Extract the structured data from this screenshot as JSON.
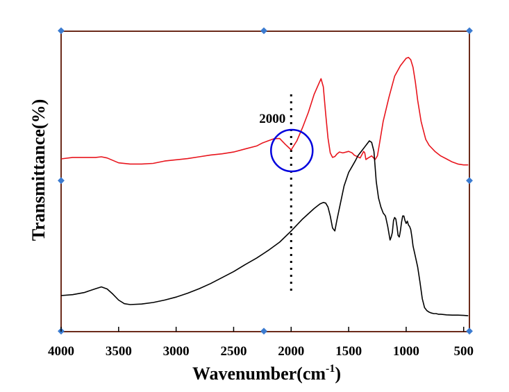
{
  "chart_data": {
    "type": "line",
    "title": "",
    "xlabel": "Wavenumber(cm",
    "xlabel_sup": "-1",
    "xlabel_close": ")",
    "ylabel": "Transmittance(%)",
    "xlim": [
      4000,
      450
    ],
    "ylim": [
      0,
      100
    ],
    "x_reversed": true,
    "xticks": [
      4000,
      3500,
      3000,
      2500,
      2000,
      1500,
      1000,
      500
    ],
    "xtick_labels": [
      "4000",
      "3500",
      "3000",
      "2500",
      "2000",
      "1500",
      "1000",
      "500"
    ],
    "grid": false,
    "colors": {
      "frame": "#6b2a1a",
      "handle": "#3b7bd0",
      "marker": "#0000dd"
    },
    "series": [
      {
        "name": "red",
        "color": "#e8141c",
        "x": [
          4000,
          3900,
          3800,
          3700,
          3650,
          3600,
          3500,
          3400,
          3300,
          3200,
          3100,
          3000,
          2900,
          2800,
          2700,
          2600,
          2500,
          2400,
          2300,
          2250,
          2200,
          2150,
          2100,
          2050,
          2000,
          1950,
          1900,
          1850,
          1800,
          1760,
          1740,
          1720,
          1700,
          1680,
          1660,
          1640,
          1620,
          1600,
          1580,
          1550,
          1500,
          1470,
          1450,
          1420,
          1400,
          1370,
          1360,
          1350,
          1330,
          1300,
          1270,
          1250,
          1230,
          1200,
          1150,
          1100,
          1050,
          1020,
          1000,
          980,
          960,
          940,
          920,
          900,
          870,
          850,
          830,
          800,
          750,
          700,
          650,
          600,
          550,
          500,
          460
        ],
        "y": [
          57.5,
          58.0,
          58.0,
          58.0,
          58.2,
          57.8,
          56.2,
          55.8,
          55.8,
          56.0,
          56.8,
          57.2,
          57.6,
          58.2,
          58.8,
          59.2,
          59.8,
          60.8,
          61.8,
          62.8,
          63.5,
          64.2,
          64.3,
          62.3,
          60.5,
          63.5,
          68.0,
          73.0,
          79.0,
          82.5,
          84.2,
          81.5,
          72.5,
          64.5,
          59.5,
          58.0,
          58.3,
          59.2,
          59.8,
          59.5,
          60.0,
          59.5,
          58.7,
          58.2,
          57.8,
          60.0,
          59.5,
          57.3,
          57.8,
          58.5,
          57.3,
          58.5,
          63.0,
          70.0,
          78.0,
          85.0,
          88.5,
          90.0,
          91.0,
          91.3,
          90.5,
          88.0,
          83.0,
          77.0,
          70.0,
          67.0,
          64.0,
          62.0,
          60.0,
          58.5,
          57.5,
          56.5,
          55.8,
          55.5,
          55.5
        ]
      },
      {
        "name": "black",
        "color": "#000000",
        "x": [
          4000,
          3900,
          3800,
          3700,
          3650,
          3600,
          3550,
          3500,
          3450,
          3400,
          3300,
          3200,
          3100,
          3000,
          2900,
          2800,
          2700,
          2600,
          2500,
          2400,
          2300,
          2200,
          2100,
          2000,
          1900,
          1800,
          1750,
          1720,
          1700,
          1680,
          1660,
          1640,
          1620,
          1600,
          1570,
          1540,
          1500,
          1470,
          1440,
          1420,
          1400,
          1380,
          1360,
          1340,
          1320,
          1300,
          1280,
          1260,
          1240,
          1220,
          1200,
          1180,
          1160,
          1140,
          1130,
          1120,
          1110,
          1100,
          1090,
          1080,
          1070,
          1060,
          1050,
          1040,
          1030,
          1020,
          1010,
          1000,
          990,
          980,
          970,
          960,
          950,
          940,
          920,
          900,
          880,
          860,
          840,
          820,
          800,
          780,
          760,
          740,
          720,
          700,
          650,
          600,
          550,
          500,
          460
        ],
        "y": [
          12.0,
          12.3,
          13.0,
          14.3,
          14.9,
          14.2,
          12.5,
          10.5,
          9.3,
          9.0,
          9.2,
          9.7,
          10.5,
          11.5,
          12.8,
          14.3,
          16.0,
          18.0,
          20.0,
          22.3,
          24.5,
          27.0,
          29.8,
          33.5,
          37.5,
          41.0,
          42.5,
          43.0,
          42.8,
          41.5,
          38.5,
          34.5,
          33.5,
          37.5,
          43.0,
          48.5,
          53.0,
          55.0,
          57.0,
          58.5,
          59.5,
          60.5,
          61.5,
          62.5,
          63.5,
          63.0,
          60.0,
          50.0,
          44.5,
          41.5,
          39.5,
          38.5,
          35.0,
          30.5,
          31.5,
          33.0,
          37.0,
          38.0,
          37.5,
          35.0,
          32.0,
          31.5,
          33.5,
          36.5,
          38.5,
          38.5,
          37.0,
          36.0,
          36.8,
          35.5,
          35.0,
          34.0,
          31.5,
          28.5,
          25.0,
          21.5,
          16.5,
          11.0,
          8.0,
          7.0,
          6.5,
          6.2,
          6.0,
          6.0,
          5.8,
          5.8,
          5.6,
          5.5,
          5.5,
          5.4,
          5.3
        ]
      }
    ],
    "annotations": [
      {
        "type": "vline",
        "x": 2000,
        "style": "dotted"
      },
      {
        "type": "label",
        "x": 2000,
        "text": "2000"
      },
      {
        "type": "circle",
        "x": 2000,
        "y": 60.5
      }
    ]
  }
}
